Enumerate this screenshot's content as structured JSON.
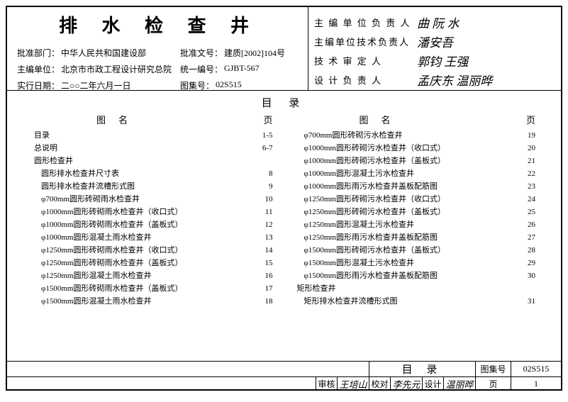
{
  "header": {
    "title": "排 水 检 查 井",
    "approve_dept_label": "批准部门：",
    "approve_dept": "中华人民共和国建设部",
    "approve_doc_label": "批准文号：",
    "approve_doc": "建质[2002]104号",
    "editor_unit_label": "主编单位：",
    "editor_unit": "北京市市政工程设计研究总院",
    "uni_no_label": "统一编号：",
    "uni_no": "GJBT-567",
    "exec_date_label": "实行日期：",
    "exec_date": "二○○二年六月一日",
    "atlas_no_label": "图集号：",
    "atlas_no": "02S515"
  },
  "sigs": {
    "r1_label": "主 编 单 位 负 责 人",
    "r1_val": "曲 阮 水",
    "r2_label": "主编单位技术负责人",
    "r2_val": "潘安吾",
    "r3_label": "技  术  审  定  人",
    "r3_val": "郭钧 王强",
    "r4_label": "设  计  负  责  人",
    "r4_val": "孟庆东 温丽晔"
  },
  "toc_title": "目 录",
  "toc_hdr_name": "图名",
  "toc_hdr_page": "页",
  "left": [
    {
      "t": "目录",
      "p": "1-5",
      "sec": true
    },
    {
      "t": "总说明",
      "p": "6-7",
      "sec": true
    },
    {
      "t": "圆形检查井",
      "p": "",
      "sec": true
    },
    {
      "t": "圆形排水检查井尺寸表",
      "p": "8"
    },
    {
      "t": "圆形排水检查井流槽形式图",
      "p": "9"
    },
    {
      "t": "φ700mm圆形砖砌雨水检查井",
      "p": "10"
    },
    {
      "t": "φ1000mm圆形砖砌雨水检查井（收口式）",
      "p": "11"
    },
    {
      "t": "φ1000mm圆形砖砌雨水检查井（盖板式）",
      "p": "12"
    },
    {
      "t": "φ1000mm圆形混凝土雨水检查井",
      "p": "13"
    },
    {
      "t": "φ1250mm圆形砖砌雨水检查井（收口式）",
      "p": "14"
    },
    {
      "t": "φ1250mm圆形砖砌雨水检查井（盖板式）",
      "p": "15"
    },
    {
      "t": "φ1250mm圆形混凝土雨水检查井",
      "p": "16"
    },
    {
      "t": "φ1500mm圆形砖砌雨水检查井（盖板式）",
      "p": "17"
    },
    {
      "t": "φ1500mm圆形混凝土雨水检查井",
      "p": "18"
    }
  ],
  "right": [
    {
      "t": "φ700mm圆形砖砌污水检查井",
      "p": "19"
    },
    {
      "t": "φ1000mm圆形砖砌污水检查井（收口式）",
      "p": "20"
    },
    {
      "t": "φ1000mm圆形砖砌污水检查井（盖板式）",
      "p": "21"
    },
    {
      "t": "φ1000mm圆形混凝土污水检查井",
      "p": "22"
    },
    {
      "t": "φ1000mm圆形雨污水检查井盖板配筋图",
      "p": "23"
    },
    {
      "t": "φ1250mm圆形砖砌污水检查井（收口式）",
      "p": "24"
    },
    {
      "t": "φ1250mm圆形砖砌污水检查井（盖板式）",
      "p": "25"
    },
    {
      "t": "φ1250mm圆形混凝土污水检查井",
      "p": "26"
    },
    {
      "t": "φ1250mm圆形雨污水检查井盖板配筋图",
      "p": "27"
    },
    {
      "t": "φ1500mm圆形砖砌污水检查井（盖板式）",
      "p": "28"
    },
    {
      "t": "φ1500mm圆形混凝土污水检查井",
      "p": "29"
    },
    {
      "t": "φ1500mm圆形雨污水检查井盖板配筋图",
      "p": "30"
    },
    {
      "t": "矩形检查井",
      "p": "",
      "sec": true
    },
    {
      "t": "矩形排水检查井流槽形式图",
      "p": "31"
    }
  ],
  "footer": {
    "mulu": "目  录",
    "atlas_label": "图集号",
    "atlas_val": "02S515",
    "shenhe_label": "审核",
    "shenhe_val": "王培山",
    "jiaodui_label": "校对",
    "jiaodui_val": "李先元",
    "sheji_label": "设计",
    "sheji_val": "温丽晔",
    "page_label": "页",
    "page_val": "1"
  }
}
